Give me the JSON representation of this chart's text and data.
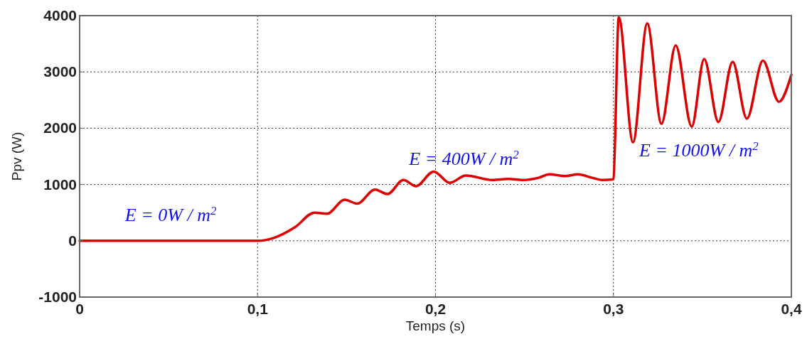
{
  "chart_data": {
    "type": "line",
    "xlabel": "Temps (s)",
    "ylabel": "Ppv (W)",
    "xlim": [
      0,
      0.4
    ],
    "ylim": [
      -1000,
      4000
    ],
    "xticks": [
      0,
      {
        "value": 0.1,
        "label": "0,1"
      },
      {
        "value": 0.2,
        "label": "0,2"
      },
      {
        "value": 0.3,
        "label": "0,3"
      },
      {
        "value": 0.4,
        "label": "0,4"
      }
    ],
    "yticks": [
      -1000,
      0,
      1000,
      2000,
      3000,
      4000
    ],
    "grid": true,
    "line_style": "solid",
    "series": [
      {
        "color": "#dd0000",
        "x": [
          0,
          0.05,
          0.1,
          0.109,
          0.121,
          0.132,
          0.139,
          0.149,
          0.156,
          0.166,
          0.173,
          0.182,
          0.189,
          0.199,
          0.208,
          0.217,
          0.232,
          0.241,
          0.249,
          0.258,
          0.264,
          0.273,
          0.28,
          0.288,
          0.294,
          0.2995,
          0.3,
          0.303,
          0.311,
          0.319,
          0.327,
          0.335,
          0.344,
          0.351,
          0.359,
          0.367,
          0.375,
          0.384,
          0.393,
          0.4
        ],
        "values": [
          0,
          0,
          0,
          50,
          240,
          500,
          480,
          730,
          660,
          910,
          830,
          1080,
          970,
          1230,
          1030,
          1160,
          1080,
          1100,
          1080,
          1120,
          1180,
          1150,
          1180,
          1120,
          1080,
          1090,
          1100,
          3970,
          1750,
          3860,
          2080,
          3470,
          2030,
          3230,
          2110,
          3180,
          2170,
          3200,
          2470,
          2950
        ]
      }
    ],
    "annotations": [
      "E = 0W / m$^{2}$",
      "E = 400W / m$^{2}$",
      "E = 1000W / m$^{2}$"
    ]
  }
}
